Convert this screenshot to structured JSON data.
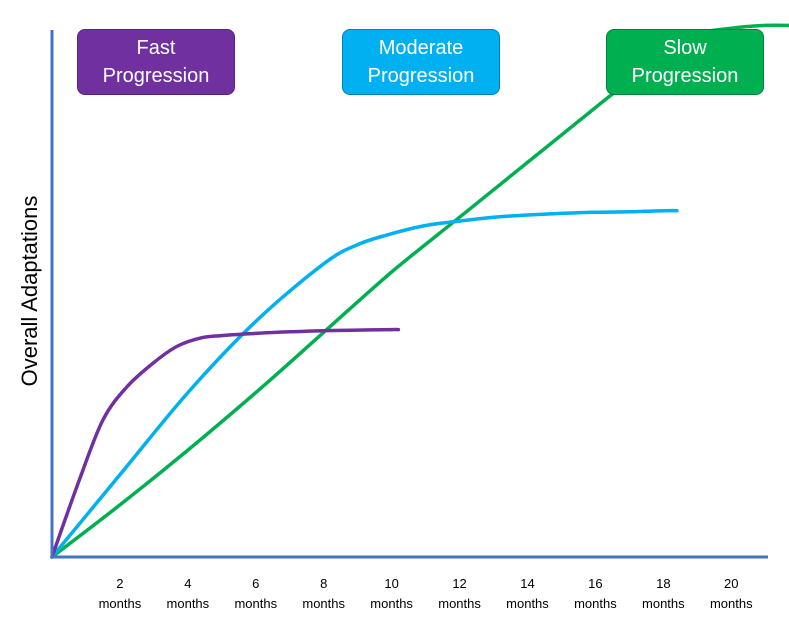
{
  "chart_data": {
    "type": "line",
    "title": "",
    "xlabel": "",
    "ylabel": "Overall Adaptations",
    "x_ticks": [
      {
        "value": 2,
        "label_num": "2",
        "label_unit": "months"
      },
      {
        "value": 4,
        "label_num": "4",
        "label_unit": "months"
      },
      {
        "value": 6,
        "label_num": "6",
        "label_unit": "months"
      },
      {
        "value": 8,
        "label_num": "8",
        "label_unit": "months"
      },
      {
        "value": 10,
        "label_num": "10",
        "label_unit": "months"
      },
      {
        "value": 12,
        "label_num": "12",
        "label_unit": "months"
      },
      {
        "value": 14,
        "label_num": "14",
        "label_unit": "months"
      },
      {
        "value": 16,
        "label_num": "16",
        "label_unit": "months"
      },
      {
        "value": 18,
        "label_num": "18",
        "label_unit": "months"
      },
      {
        "value": 20,
        "label_num": "20",
        "label_unit": "months"
      }
    ],
    "xlim": [
      0,
      21.7
    ],
    "ylim": [
      0,
      100
    ],
    "grid": false,
    "legend_position": "top",
    "series": [
      {
        "name": "Fast Progression",
        "color": "#7030A0",
        "points": [
          [
            0,
            0
          ],
          [
            0.8,
            14
          ],
          [
            1.5,
            25
          ],
          [
            2.2,
            31
          ],
          [
            3,
            35.5
          ],
          [
            3.7,
            38.5
          ],
          [
            4.4,
            40
          ],
          [
            5,
            40.4
          ],
          [
            6,
            40.8
          ],
          [
            7,
            41.1
          ],
          [
            8,
            41.3
          ],
          [
            9,
            41.4
          ],
          [
            10,
            41.5
          ],
          [
            10.2,
            41.5
          ]
        ]
      },
      {
        "name": "Moderate Progression",
        "color": "#00B0F0",
        "points": [
          [
            0,
            0
          ],
          [
            2,
            15
          ],
          [
            4,
            30
          ],
          [
            6,
            43
          ],
          [
            8,
            53.5
          ],
          [
            9,
            57
          ],
          [
            10,
            59
          ],
          [
            11,
            60.5
          ],
          [
            12,
            61.3
          ],
          [
            13,
            62
          ],
          [
            14,
            62.4
          ],
          [
            15,
            62.7
          ],
          [
            16,
            62.9
          ],
          [
            17,
            63
          ],
          [
            18,
            63.2
          ],
          [
            18.4,
            63.2
          ]
        ]
      },
      {
        "name": "Slow Progression",
        "color": "#00B050",
        "points": [
          [
            0,
            0
          ],
          [
            2,
            9.5
          ],
          [
            4,
            19.5
          ],
          [
            6,
            30
          ],
          [
            8,
            41
          ],
          [
            10,
            52
          ],
          [
            12,
            62
          ],
          [
            14,
            72
          ],
          [
            16,
            82
          ],
          [
            17,
            87
          ],
          [
            18,
            92.5
          ],
          [
            19,
            95.5
          ],
          [
            20,
            96.5
          ],
          [
            21,
            97
          ],
          [
            21.7,
            97
          ]
        ]
      }
    ]
  }
}
